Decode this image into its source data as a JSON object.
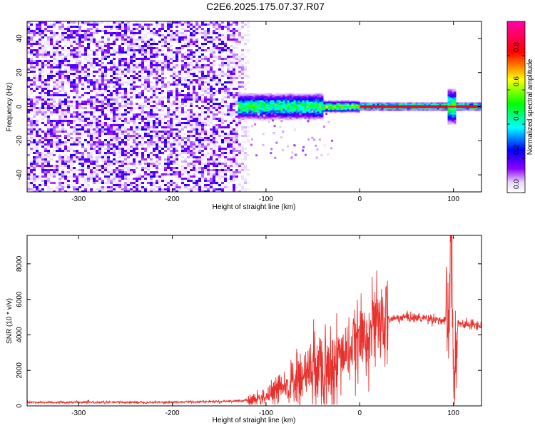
{
  "title": "C2E6.2025.175.07.37.R07",
  "chart_data": [
    {
      "type": "heatmap",
      "xlabel": "Height of straight line (km)",
      "ylabel": "Frequency (Hz)",
      "xlim": [
        -355,
        130
      ],
      "ylim": [
        -50,
        50
      ],
      "x_ticks": [
        -300,
        -200,
        -100,
        0,
        100
      ],
      "x_tick_labels": [
        "-300",
        "-200",
        "-100",
        "0",
        "100"
      ],
      "y_ticks": [
        -40,
        -20,
        0,
        20,
        40
      ],
      "y_tick_labels": [
        "-40",
        "-20",
        "0",
        "20",
        "40"
      ],
      "noise_region_x": [
        -355,
        -118
      ],
      "signal_region_x": [
        -130,
        130
      ],
      "signal_center_frequency": 0,
      "colorbar": {
        "label": "Normalized spectral amplitude",
        "range": [
          0,
          1
        ],
        "ticks": [
          0.0,
          0.2,
          0.4,
          0.6,
          0.8
        ],
        "tick_labels": [
          "0.0",
          "0.2",
          "0.4",
          "0.6",
          "0.8"
        ],
        "colors": [
          "#ffffff",
          "#8a00ff",
          "#0000ff",
          "#00ffff",
          "#00ff00",
          "#ffff00",
          "#ff0000",
          "#ff00aa"
        ]
      }
    },
    {
      "type": "line",
      "xlabel": "Height of straight line (km)",
      "ylabel": "SNR (10 * v/v)",
      "xlim": [
        -355,
        130
      ],
      "ylim": [
        0,
        9600
      ],
      "x_ticks": [
        -300,
        -200,
        -100,
        0,
        100
      ],
      "x_tick_labels": [
        "-300",
        "-200",
        "-100",
        "0",
        "100"
      ],
      "y_ticks": [
        0,
        2000,
        4000,
        6000,
        8000
      ],
      "y_tick_labels": [
        "0",
        "2000",
        "4000",
        "6000",
        "8000"
      ],
      "color": "#e8302c",
      "x": [
        -355,
        -300,
        -250,
        -200,
        -150,
        -120,
        -110,
        -100,
        -90,
        -80,
        -70,
        -60,
        -50,
        -40,
        -30,
        -20,
        -10,
        0,
        10,
        20,
        30,
        40,
        50,
        60,
        70,
        80,
        85,
        90,
        95,
        98,
        100,
        102,
        105,
        110,
        120,
        130
      ],
      "y": [
        200,
        200,
        200,
        210,
        250,
        300,
        400,
        550,
        750,
        1050,
        1300,
        1650,
        2000,
        2200,
        2400,
        2800,
        3200,
        3700,
        4200,
        4600,
        4850,
        4950,
        5000,
        4950,
        4950,
        4900,
        4850,
        4750,
        4800,
        9500,
        600,
        3200,
        4700,
        4600,
        4550,
        4550
      ]
    }
  ]
}
